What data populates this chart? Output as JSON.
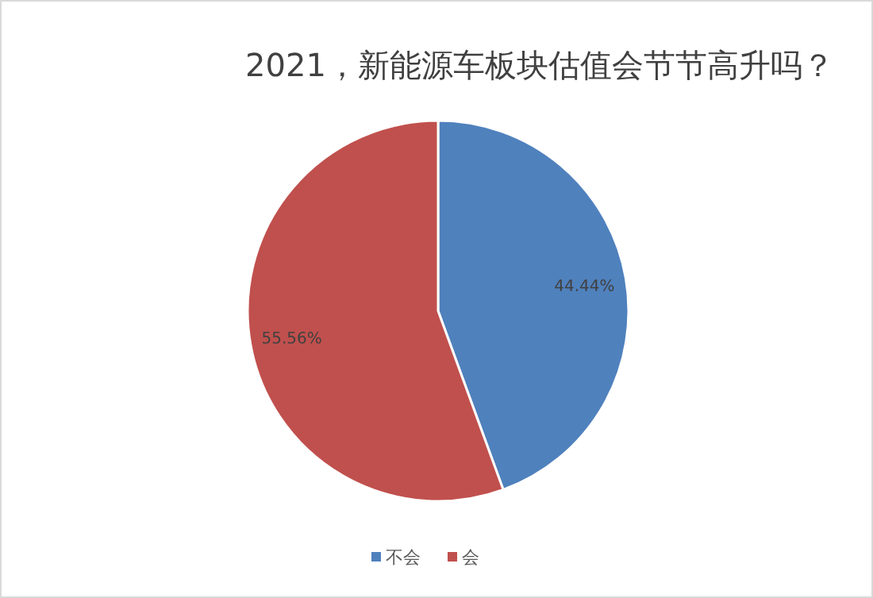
{
  "chart_data": {
    "type": "pie",
    "title": "2021，新能源车板块估值会节节高升吗？",
    "categories": [
      "不会",
      "会"
    ],
    "values": [
      44.44,
      55.56
    ],
    "colors": [
      "#4f81bd",
      "#c0504d"
    ],
    "value_labels": [
      "44.44%",
      "55.56%"
    ],
    "legend": "bottom"
  }
}
